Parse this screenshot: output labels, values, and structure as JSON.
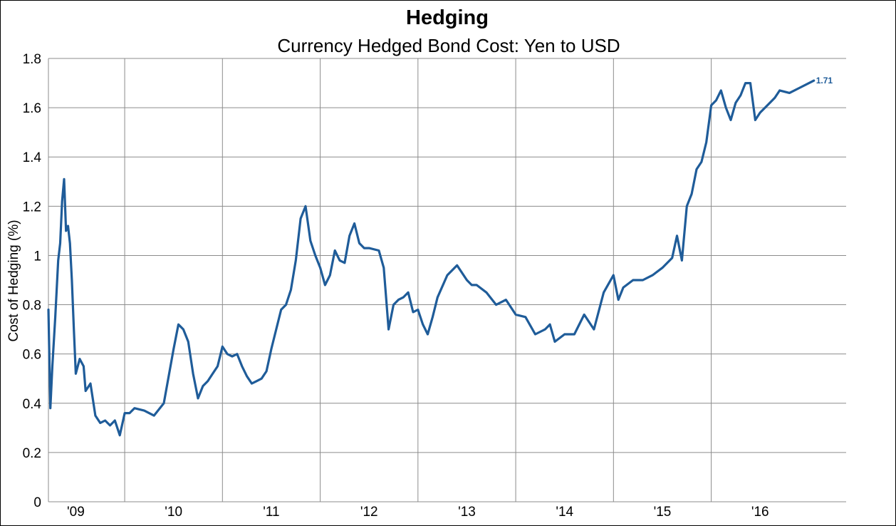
{
  "chart_data": {
    "type": "line",
    "title": "Hedging",
    "subtitle": "Currency Hedged Bond Cost: Yen to USD",
    "ylabel": "Cost of Hedging (%)",
    "xlabel": "",
    "ylim": [
      0,
      1.8
    ],
    "xlim": [
      2008.72,
      2016.88
    ],
    "y_ticks": [
      "0",
      "0.2",
      "0.4",
      "0.6",
      "0.8",
      "1",
      "1.2",
      "1.4",
      "1.6",
      "1.8"
    ],
    "y_tick_values": [
      0,
      0.2,
      0.4,
      0.6,
      0.8,
      1.0,
      1.2,
      1.4,
      1.6,
      1.8
    ],
    "x_ticks": [
      "'09",
      "'10",
      "'11",
      "'12",
      "'13",
      "'14",
      "'15",
      "'16"
    ],
    "x_tick_positions": [
      2009.0,
      2010.0,
      2011.0,
      2012.0,
      2013.0,
      2014.0,
      2015.0,
      2016.0
    ],
    "year_gridlines": [
      2009.5,
      2010.5,
      2011.5,
      2012.5,
      2013.5,
      2014.5,
      2015.5
    ],
    "grid": true,
    "end_label": "1.71",
    "color": "#1f5c99",
    "series": [
      {
        "x": [
          2008.72,
          2008.74,
          2008.76,
          2008.79,
          2008.82,
          2008.84,
          2008.86,
          2008.88,
          2008.9,
          2008.92,
          2008.94,
          2008.96,
          2008.98,
          2009.0,
          2009.04,
          2009.08,
          2009.1,
          2009.15,
          2009.2,
          2009.25,
          2009.3,
          2009.35,
          2009.4,
          2009.45,
          2009.5,
          2009.55,
          2009.6,
          2009.7,
          2009.8,
          2009.9,
          2010.0,
          2010.05,
          2010.1,
          2010.15,
          2010.2,
          2010.25,
          2010.3,
          2010.35,
          2010.4,
          2010.45,
          2010.5,
          2010.55,
          2010.6,
          2010.65,
          2010.7,
          2010.75,
          2010.8,
          2010.85,
          2010.9,
          2010.95,
          2011.0,
          2011.05,
          2011.1,
          2011.15,
          2011.2,
          2011.25,
          2011.3,
          2011.35,
          2011.4,
          2011.45,
          2011.5,
          2011.55,
          2011.6,
          2011.65,
          2011.7,
          2011.75,
          2011.8,
          2011.85,
          2011.9,
          2011.95,
          2012.0,
          2012.1,
          2012.15,
          2012.2,
          2012.25,
          2012.3,
          2012.35,
          2012.4,
          2012.45,
          2012.5,
          2012.55,
          2012.6,
          2012.65,
          2012.7,
          2012.8,
          2012.9,
          2013.0,
          2013.05,
          2013.1,
          2013.2,
          2013.3,
          2013.4,
          2013.5,
          2013.6,
          2013.7,
          2013.8,
          2013.85,
          2013.9,
          2014.0,
          2014.1,
          2014.2,
          2014.3,
          2014.4,
          2014.5,
          2014.55,
          2014.6,
          2014.7,
          2014.8,
          2014.9,
          2015.0,
          2015.1,
          2015.15,
          2015.2,
          2015.25,
          2015.3,
          2015.35,
          2015.4,
          2015.45,
          2015.5,
          2015.55,
          2015.6,
          2015.65,
          2015.7,
          2015.75,
          2015.8,
          2015.85,
          2015.9,
          2015.95,
          2016.0,
          2016.05,
          2016.1,
          2016.15,
          2016.2,
          2016.3,
          2016.4,
          2016.5,
          2016.55
        ],
        "y": [
          0.78,
          0.38,
          0.55,
          0.75,
          0.98,
          1.05,
          1.22,
          1.31,
          1.1,
          1.12,
          1.05,
          0.9,
          0.7,
          0.52,
          0.58,
          0.55,
          0.45,
          0.48,
          0.35,
          0.32,
          0.33,
          0.31,
          0.33,
          0.27,
          0.36,
          0.36,
          0.38,
          0.37,
          0.35,
          0.4,
          0.62,
          0.72,
          0.7,
          0.65,
          0.52,
          0.42,
          0.47,
          0.49,
          0.52,
          0.55,
          0.63,
          0.6,
          0.59,
          0.6,
          0.55,
          0.51,
          0.48,
          0.49,
          0.5,
          0.53,
          0.62,
          0.7,
          0.78,
          0.8,
          0.86,
          0.98,
          1.15,
          1.2,
          1.06,
          1.0,
          0.95,
          0.88,
          0.92,
          1.02,
          0.98,
          0.97,
          1.08,
          1.13,
          1.05,
          1.03,
          1.03,
          1.02,
          0.95,
          0.7,
          0.8,
          0.82,
          0.83,
          0.85,
          0.77,
          0.78,
          0.72,
          0.68,
          0.75,
          0.83,
          0.92,
          0.96,
          0.9,
          0.88,
          0.88,
          0.85,
          0.8,
          0.82,
          0.76,
          0.75,
          0.68,
          0.7,
          0.72,
          0.65,
          0.68,
          0.68,
          0.76,
          0.7,
          0.85,
          0.92,
          0.82,
          0.87,
          0.9,
          0.9,
          0.92,
          0.95,
          0.99,
          1.08,
          0.98,
          1.2,
          1.25,
          1.35,
          1.38,
          1.46,
          1.61,
          1.63,
          1.67,
          1.6,
          1.55,
          1.62,
          1.65,
          1.7,
          1.7,
          1.55,
          1.58,
          1.6,
          1.62,
          1.64,
          1.67,
          1.66,
          1.68,
          1.7,
          1.71
        ]
      }
    ]
  }
}
